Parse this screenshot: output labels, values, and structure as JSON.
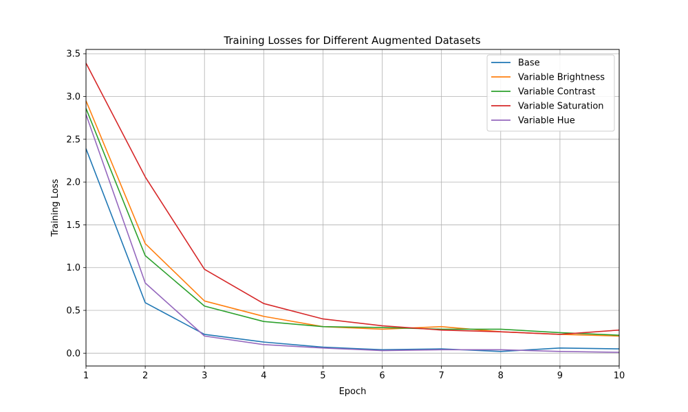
{
  "chart_data": {
    "type": "line",
    "title": "Training Losses for Different Augmented Datasets",
    "xlabel": "Epoch",
    "ylabel": "Training Loss",
    "x": [
      1,
      2,
      3,
      4,
      5,
      6,
      7,
      8,
      9,
      10
    ],
    "xlim": [
      1,
      10
    ],
    "ylim": [
      -0.15,
      3.55
    ],
    "xticks": [
      "1",
      "2",
      "3",
      "4",
      "5",
      "6",
      "7",
      "8",
      "9",
      "10"
    ],
    "yticks": [
      {
        "value": 0.0,
        "label": "0.0"
      },
      {
        "value": 0.5,
        "label": "0.5"
      },
      {
        "value": 1.0,
        "label": "1.0"
      },
      {
        "value": 1.5,
        "label": "1.5"
      },
      {
        "value": 2.0,
        "label": "2.0"
      },
      {
        "value": 2.5,
        "label": "2.5"
      },
      {
        "value": 3.0,
        "label": "3.0"
      },
      {
        "value": 3.5,
        "label": "3.5"
      }
    ],
    "grid": true,
    "legend_position": "top-right",
    "series": [
      {
        "name": "Base",
        "color": "#1f77b4",
        "values": [
          2.39,
          0.59,
          0.22,
          0.13,
          0.07,
          0.04,
          0.05,
          0.02,
          0.06,
          0.05
        ]
      },
      {
        "name": "Variable Brightness",
        "color": "#ff7f0e",
        "values": [
          2.95,
          1.28,
          0.61,
          0.43,
          0.31,
          0.28,
          0.31,
          0.25,
          0.22,
          0.2
        ]
      },
      {
        "name": "Variable Contrast",
        "color": "#2ca02c",
        "values": [
          2.86,
          1.14,
          0.55,
          0.37,
          0.31,
          0.3,
          0.28,
          0.28,
          0.24,
          0.21
        ]
      },
      {
        "name": "Variable Saturation",
        "color": "#d62728",
        "values": [
          3.39,
          2.06,
          0.98,
          0.58,
          0.4,
          0.32,
          0.27,
          0.25,
          0.22,
          0.27
        ]
      },
      {
        "name": "Variable Hue",
        "color": "#9467bd",
        "values": [
          2.79,
          0.82,
          0.2,
          0.1,
          0.06,
          0.03,
          0.04,
          0.04,
          0.02,
          0.01
        ]
      }
    ]
  }
}
